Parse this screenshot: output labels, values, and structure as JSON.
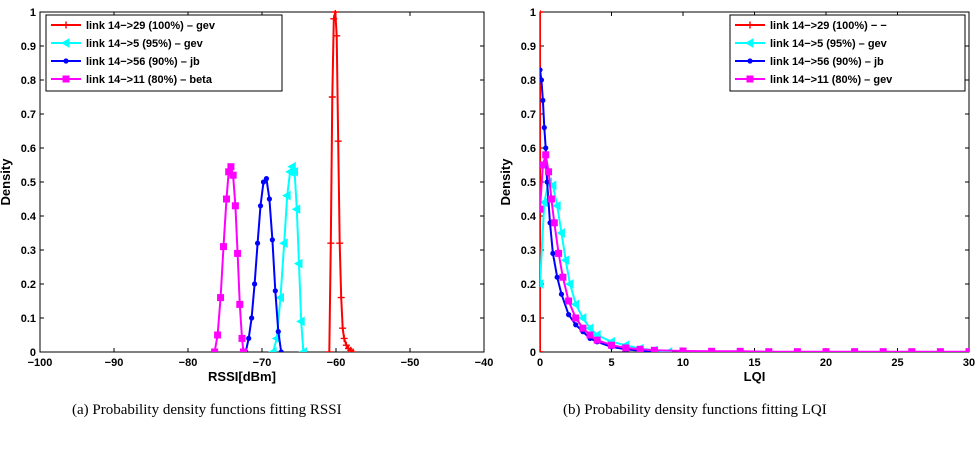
{
  "captions": {
    "a": "(a) Probability density functions fitting RSSI",
    "b": "(b) Probability density functions fitting LQI"
  },
  "chart_data": [
    {
      "type": "line",
      "xlabel": "RSSI[dBm]",
      "ylabel": "Density",
      "xlim": [
        -100,
        -40
      ],
      "ylim": [
        0,
        1
      ],
      "xticks": [
        -100,
        -90,
        -80,
        -70,
        -60,
        -50,
        -40
      ],
      "yticks": [
        0,
        0.1,
        0.2,
        0.3,
        0.4,
        0.5,
        0.6,
        0.7,
        0.8,
        0.9,
        1
      ],
      "xtick_labels": [
        "−100",
        "−90",
        "−80",
        "−70",
        "−60",
        "−50",
        "−40"
      ],
      "ytick_labels": [
        "0",
        "0.1",
        "0.2",
        "0.3",
        "0.4",
        "0.5",
        "0.6",
        "0.7",
        "0.8",
        "0.9",
        "1"
      ],
      "grid": false,
      "legend": "top-left",
      "series": [
        {
          "name": "link 14−>29 (100%) – gev",
          "color": "#ff0000",
          "marker": "plus",
          "x": [
            -60.9,
            -60.7,
            -60.5,
            -60.3,
            -60.1,
            -59.9,
            -59.7,
            -59.5,
            -59.3,
            -59.1,
            -58.9,
            -58.6,
            -58.3,
            -58.0,
            -57.7
          ],
          "y": [
            0,
            0.32,
            0.75,
            0.98,
            1.0,
            0.93,
            0.62,
            0.32,
            0.16,
            0.07,
            0.04,
            0.02,
            0.01,
            0.005,
            0
          ]
        },
        {
          "name": "link 14−>5 (95%) – gev",
          "color": "#00ffff",
          "marker": "triangle",
          "x": [
            -68.5,
            -68.0,
            -67.5,
            -67.0,
            -66.6,
            -66.2,
            -65.9,
            -65.6,
            -65.3,
            -65.0,
            -64.7,
            -64.4
          ],
          "y": [
            0,
            0.04,
            0.16,
            0.32,
            0.46,
            0.53,
            0.545,
            0.53,
            0.42,
            0.26,
            0.09,
            0
          ]
        },
        {
          "name": "link 14−>56 (90%) – jb",
          "color": "#0000ff",
          "marker": "dot",
          "x": [
            -72.2,
            -71.8,
            -71.4,
            -71.0,
            -70.6,
            -70.2,
            -69.8,
            -69.4,
            -69.0,
            -68.6,
            -68.2,
            -67.8,
            -67.4
          ],
          "y": [
            0,
            0.04,
            0.1,
            0.2,
            0.32,
            0.43,
            0.5,
            0.51,
            0.45,
            0.33,
            0.18,
            0.06,
            0
          ]
        },
        {
          "name": "link 14−>11 (80%) – beta",
          "color": "#ff00ff",
          "marker": "square",
          "x": [
            -76.4,
            -76.0,
            -75.6,
            -75.2,
            -74.8,
            -74.5,
            -74.2,
            -73.9,
            -73.6,
            -73.3,
            -73.0,
            -72.7,
            -72.5
          ],
          "y": [
            0,
            0.05,
            0.16,
            0.31,
            0.45,
            0.53,
            0.545,
            0.52,
            0.43,
            0.29,
            0.14,
            0.04,
            0
          ]
        }
      ]
    },
    {
      "type": "line",
      "xlabel": "LQI",
      "ylabel": "Density",
      "xlim": [
        0,
        30
      ],
      "ylim": [
        0,
        1
      ],
      "xticks": [
        0,
        5,
        10,
        15,
        20,
        25,
        30
      ],
      "yticks": [
        0,
        0.1,
        0.2,
        0.3,
        0.4,
        0.5,
        0.6,
        0.7,
        0.8,
        0.9,
        1
      ],
      "xtick_labels": [
        "0",
        "5",
        "10",
        "15",
        "20",
        "25",
        "30"
      ],
      "ytick_labels": [
        "0",
        "0.1",
        "0.2",
        "0.3",
        "0.4",
        "0.5",
        "0.6",
        "0.7",
        "0.8",
        "0.9",
        "1"
      ],
      "grid": false,
      "legend": "top-right",
      "series": [
        {
          "name": "link 14−>29 (100%) − −",
          "color": "#ff0000",
          "marker": "plus",
          "x": [
            0,
            0,
            0
          ],
          "y": [
            0,
            1.0,
            0
          ]
        },
        {
          "name": "link 14−>5 (95%) – gev",
          "color": "#00ffff",
          "marker": "triangle",
          "x": [
            0,
            0.3,
            0.6,
            0.9,
            1.2,
            1.5,
            1.8,
            2.1,
            2.5,
            3.0,
            3.5,
            4.0,
            5.0,
            6.0,
            7.0,
            8.0,
            9.0
          ],
          "y": [
            0.2,
            0.44,
            0.5,
            0.49,
            0.43,
            0.35,
            0.27,
            0.2,
            0.14,
            0.1,
            0.07,
            0.05,
            0.03,
            0.02,
            0.01,
            0.005,
            0
          ]
        },
        {
          "name": "link 14−>56 (90%) – jb",
          "color": "#0000ff",
          "marker": "dot",
          "x": [
            0,
            0.1,
            0.2,
            0.3,
            0.4,
            0.5,
            0.7,
            0.9,
            1.2,
            1.5,
            2.0,
            2.5,
            3.0,
            3.5,
            4.0,
            5.0,
            6.0,
            7.0,
            8.0
          ],
          "y": [
            0.83,
            0.8,
            0.74,
            0.66,
            0.6,
            0.5,
            0.38,
            0.29,
            0.22,
            0.17,
            0.11,
            0.08,
            0.06,
            0.04,
            0.03,
            0.015,
            0.008,
            0.004,
            0
          ]
        },
        {
          "name": "link 14−>11 (80%) – gev",
          "color": "#ff00ff",
          "marker": "square",
          "x": [
            0,
            0.2,
            0.4,
            0.6,
            0.8,
            1.0,
            1.3,
            1.6,
            2.0,
            2.5,
            3.0,
            3.5,
            4.0,
            5.0,
            6.0,
            7.0,
            8.0,
            10.0,
            12.0,
            14.0,
            16.0,
            18.0,
            20.0,
            22.0,
            24.0,
            26.0,
            28.0,
            30.0
          ],
          "y": [
            0.42,
            0.55,
            0.58,
            0.53,
            0.45,
            0.38,
            0.29,
            0.22,
            0.15,
            0.1,
            0.07,
            0.05,
            0.035,
            0.02,
            0.012,
            0.008,
            0.005,
            0.003,
            0.002,
            0.002,
            0.001,
            0.001,
            0.001,
            0.001,
            0.001,
            0.001,
            0.001,
            0.001
          ]
        }
      ]
    }
  ]
}
